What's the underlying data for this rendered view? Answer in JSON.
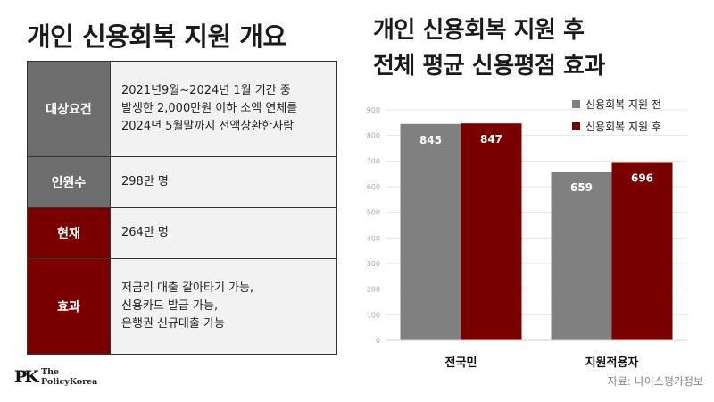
{
  "left": {
    "title": "개인 신용회복 지원 개요",
    "rows": [
      {
        "label": "대상요건",
        "value": "2021년9월~2024년 1월 기간 중\n발생한 2,000만원 이하 소액 연체를\n2024년 5월말까지 전액상환한사람",
        "header_color": "#6e6e6e"
      },
      {
        "label": "인원수",
        "value": "298만 명",
        "header_color": "#6e6e6e"
      },
      {
        "label": "현재",
        "value": "264만 명",
        "header_color": "#7a0000"
      },
      {
        "label": "효과",
        "value": "저금리 대출 갈아타기 가능,\n신용카드 발급 가능,\n은행권 신규대출 가능",
        "header_color": "#7a0000"
      }
    ]
  },
  "logo": {
    "mark": "PK",
    "line1": "The",
    "line2": "PolicyKorea"
  },
  "source": "자료: 나이스평가정보",
  "chart_data": {
    "type": "bar",
    "title": "개인 신용회복 지원 후\n전체 평균 신용평점 효과",
    "title_lines": [
      "개인 신용회복 지원 후",
      "전체 평균 신용평점 효과"
    ],
    "categories": [
      "전국민",
      "지원적용자"
    ],
    "series": [
      {
        "name": "신용회복 지원 전",
        "values": [
          845,
          659
        ],
        "color": "#808080"
      },
      {
        "name": "신용회복 지원 후",
        "values": [
          847,
          696
        ],
        "color": "#7a0000"
      }
    ],
    "ylim": [
      0,
      900
    ],
    "yticks": [
      0,
      100,
      200,
      300,
      400,
      500,
      600,
      700,
      800,
      900
    ],
    "grid": true,
    "legend": "top-right",
    "data_labels": true
  }
}
